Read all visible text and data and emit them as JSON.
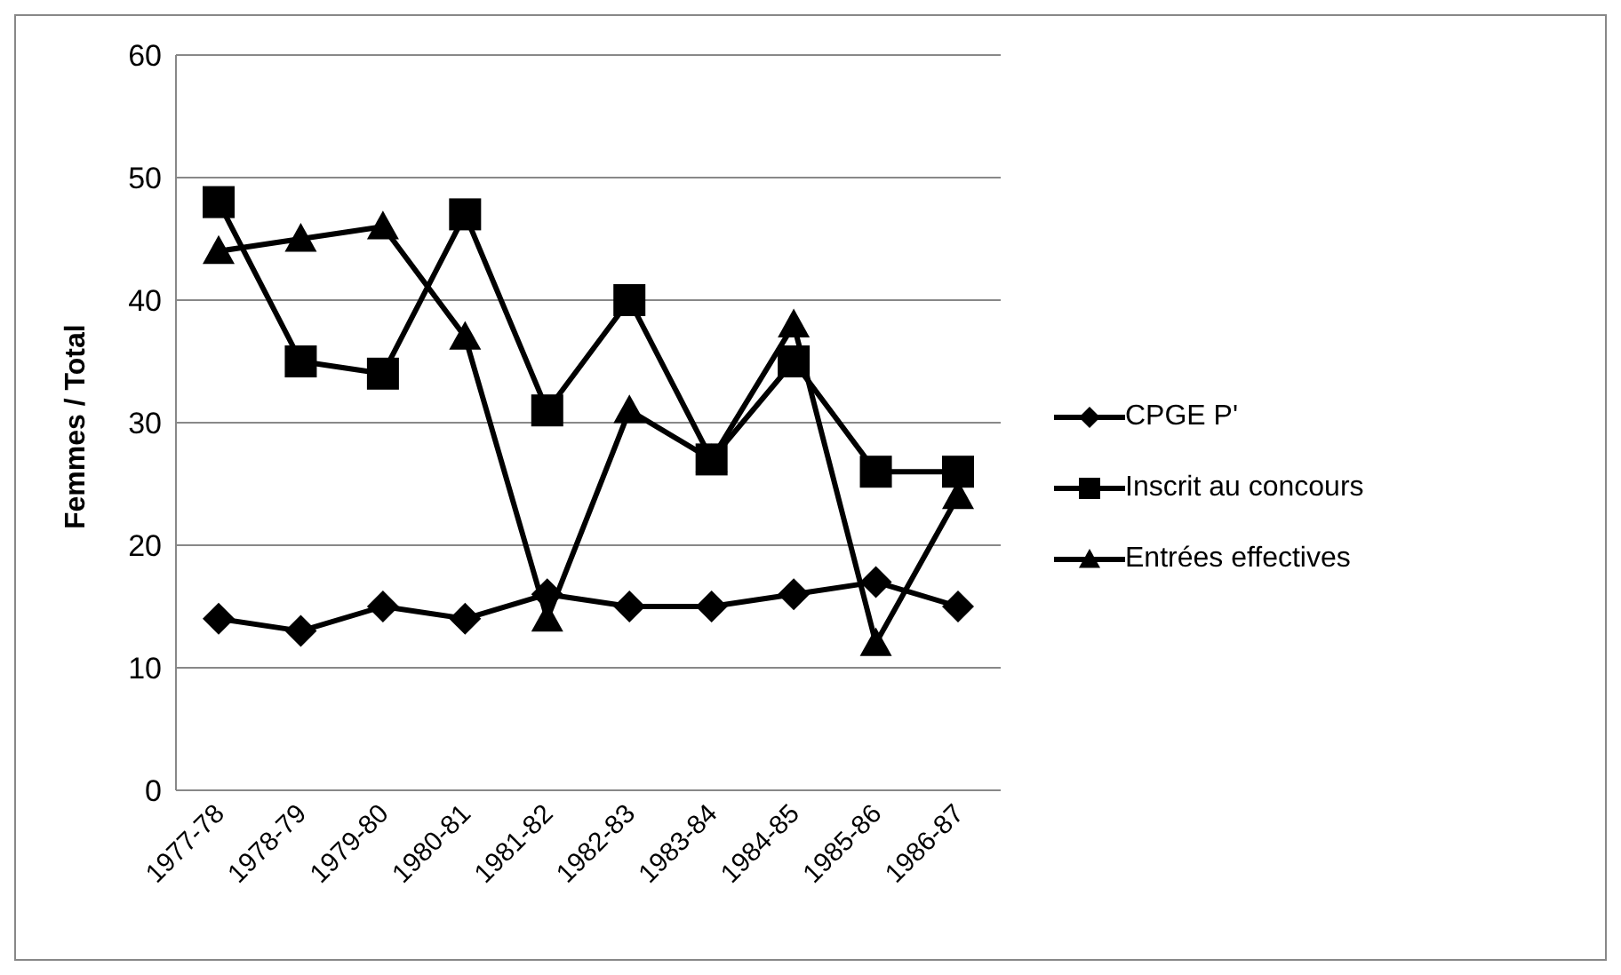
{
  "chart_data": {
    "type": "line",
    "ylabel": "Femmes / Total",
    "categories": [
      "1977-78",
      "1978-79",
      "1979-80",
      "1980-81",
      "1981-82",
      "1982-83",
      "1983-84",
      "1984-85",
      "1985-86",
      "1986-87"
    ],
    "series": [
      {
        "name": "CPGE P'",
        "color": "#000000",
        "marker": "diamond",
        "values": [
          14,
          13,
          15,
          14,
          16,
          15,
          15,
          16,
          17,
          15
        ]
      },
      {
        "name": "Inscrit au concours",
        "color": "#000000",
        "marker": "square",
        "values": [
          48,
          35,
          34,
          47,
          31,
          40,
          27,
          35,
          26,
          26
        ]
      },
      {
        "name": "Entrées effectives",
        "color": "#000000",
        "marker": "triangle",
        "values": [
          44,
          45,
          46,
          37,
          14,
          31,
          27,
          38,
          12,
          24
        ]
      }
    ],
    "ylim": [
      0,
      60
    ],
    "yticks": [
      0,
      10,
      20,
      30,
      40,
      50,
      60
    ],
    "grid": "y",
    "legend": "right",
    "line_style": "solid"
  }
}
